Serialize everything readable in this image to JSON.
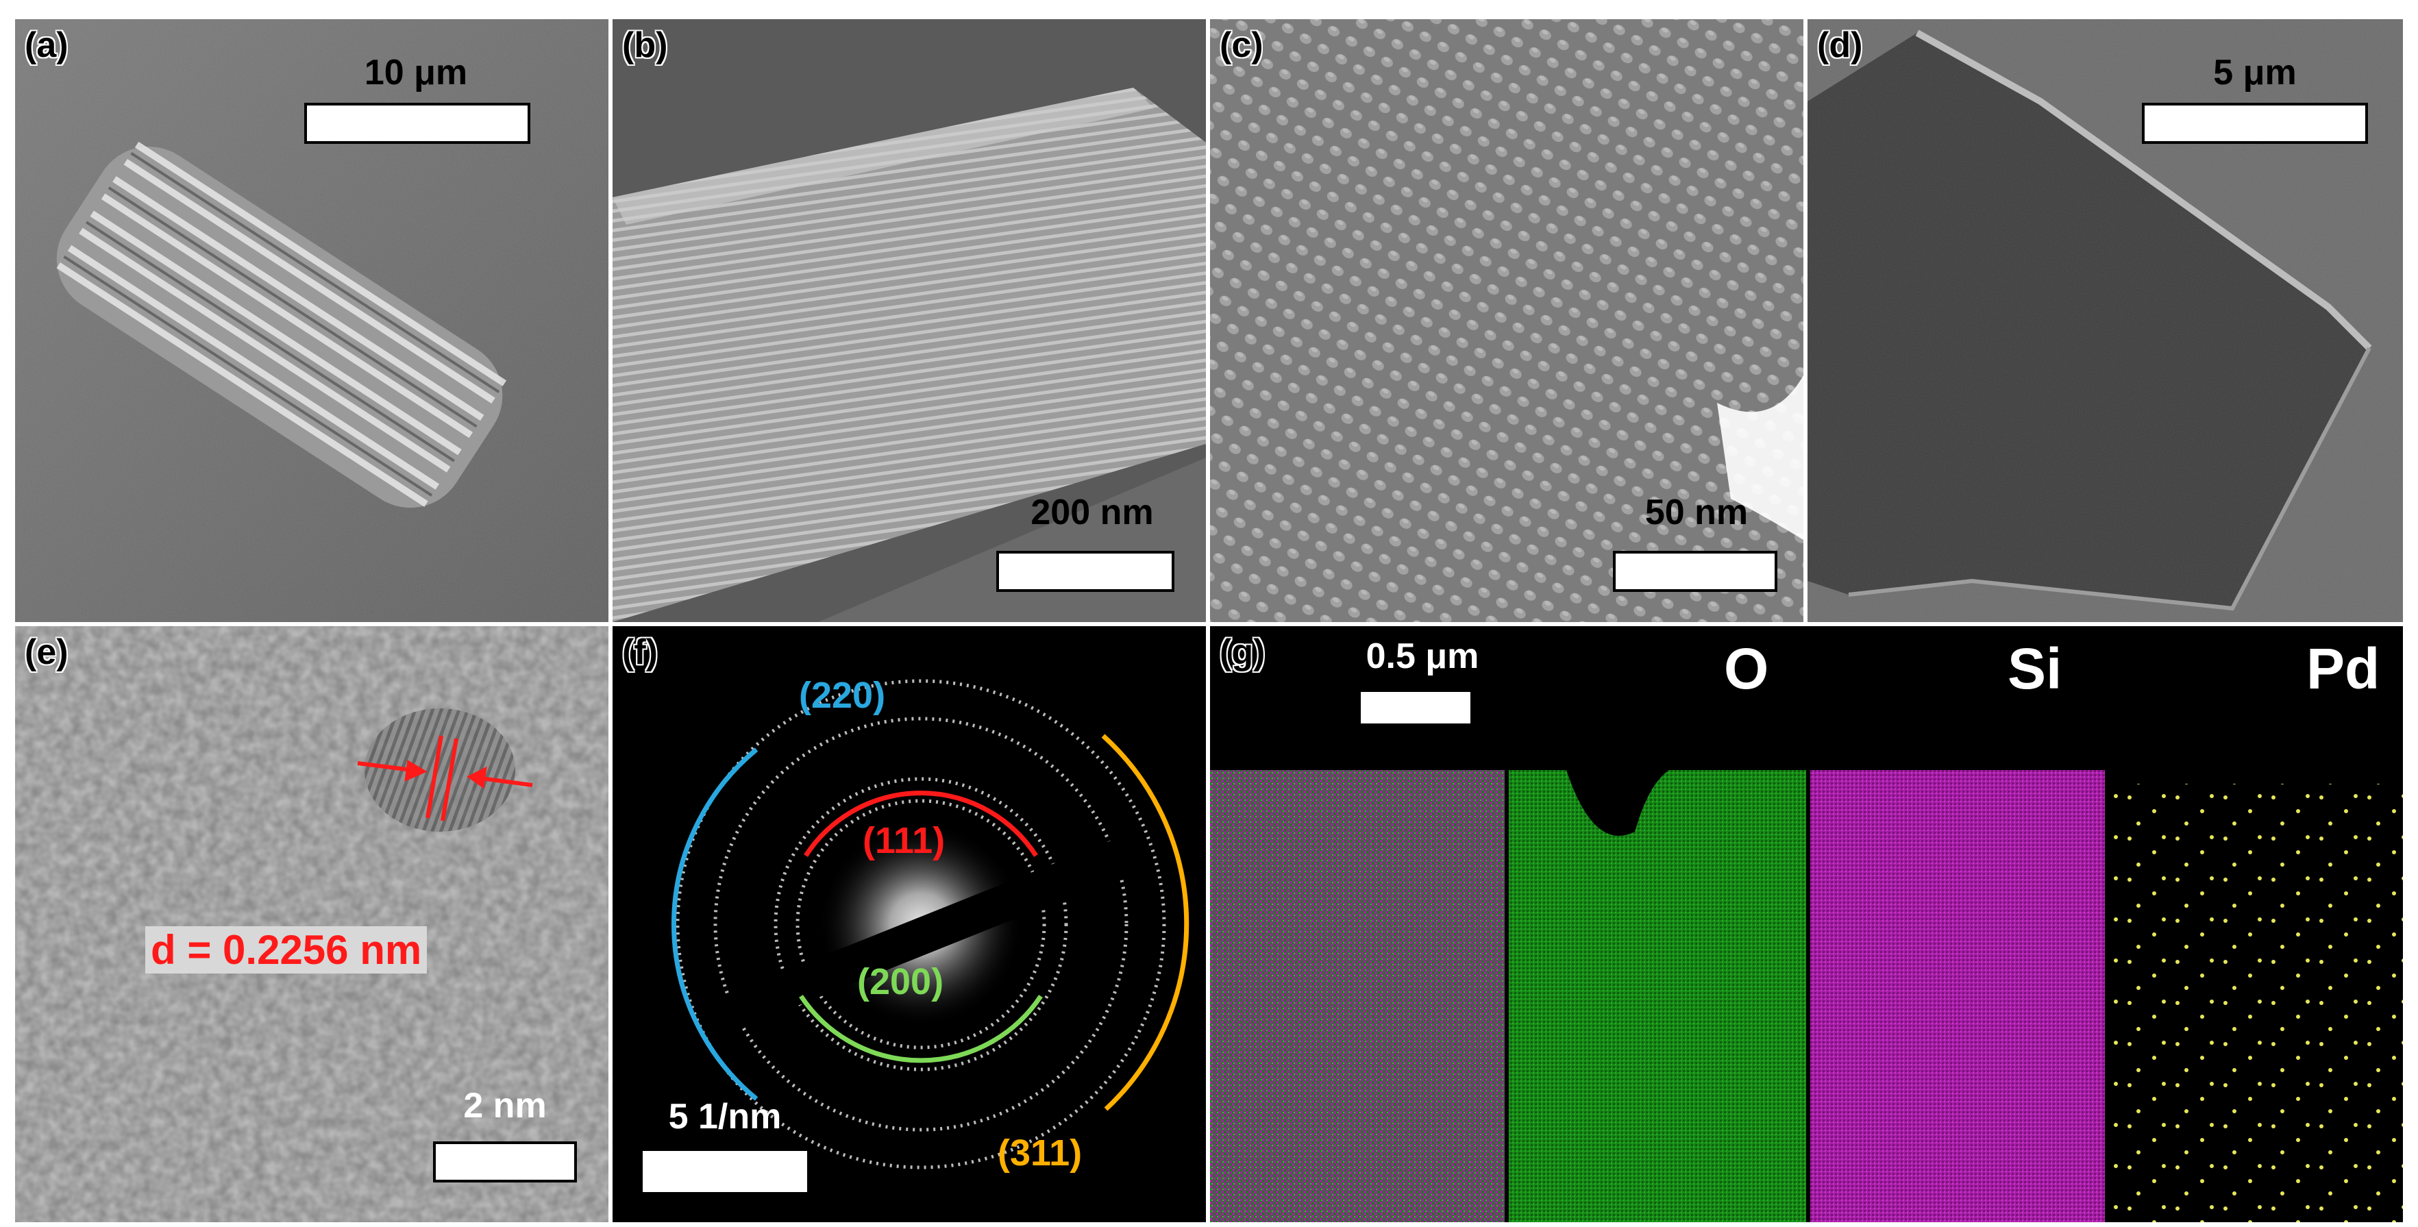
{
  "panels": {
    "a": {
      "letter": "(a)",
      "scale_label": "10 μm"
    },
    "b": {
      "letter": "(b)",
      "scale_label": "200 nm"
    },
    "c": {
      "letter": "(c)",
      "scale_label": "50 nm"
    },
    "d": {
      "letter": "(d)",
      "scale_label": "5 μm"
    },
    "e": {
      "letter": "(e)",
      "scale_label": "2 nm",
      "d_spacing": "d = 0.2256 nm"
    },
    "f": {
      "letter": "(f)",
      "scale_label": "5 1/nm",
      "rings": [
        {
          "label": "(111)",
          "color": "#ff1a1a"
        },
        {
          "label": "(200)",
          "color": "#7ed957"
        },
        {
          "label": "(220)",
          "color": "#29a8e0"
        },
        {
          "label": "(311)",
          "color": "#ffb000"
        }
      ]
    },
    "g": {
      "letter": "(g)",
      "scale_label": "0.5 μm",
      "maps": [
        {
          "element": "",
          "colors": [
            "#b01fb0",
            "#1f9a1f"
          ]
        },
        {
          "element": "O",
          "colors": [
            "#1f9a1f"
          ]
        },
        {
          "element": "Si",
          "colors": [
            "#b01fb0"
          ]
        },
        {
          "element": "Pd",
          "colors": [
            "#e6e65a"
          ]
        }
      ]
    }
  }
}
